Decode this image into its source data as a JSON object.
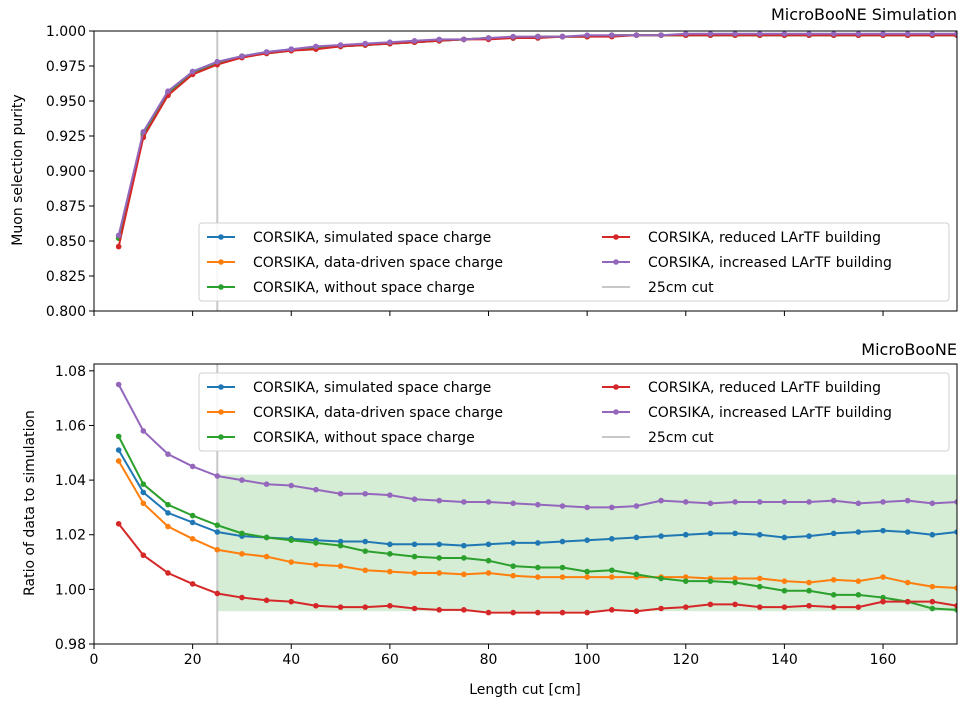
{
  "chart_data": [
    {
      "type": "line",
      "title": "MicroBooNE Simulation",
      "xlabel": "",
      "ylabel": "Muon selection purity",
      "xlim": [
        0,
        175
      ],
      "ylim": [
        0.8,
        1.0
      ],
      "xticks": [
        0,
        20,
        40,
        60,
        80,
        100,
        120,
        140,
        160
      ],
      "yticks": [
        0.8,
        0.825,
        0.85,
        0.875,
        0.9,
        0.925,
        0.95,
        0.975,
        1.0
      ],
      "ytick_labels": [
        "0.800",
        "0.825",
        "0.850",
        "0.875",
        "0.900",
        "0.925",
        "0.950",
        "0.975",
        "1.000"
      ],
      "cut_line_x": 25,
      "legend": {
        "placement": "lower right",
        "entries": [
          "CORSIKA, simulated space charge",
          "CORSIKA, data-driven space charge",
          "CORSIKA, without space charge",
          "CORSIKA, reduced LArTF building",
          "CORSIKA, increased LArTF building",
          "25cm cut"
        ]
      },
      "x": [
        5,
        10,
        15,
        20,
        25,
        30,
        35,
        40,
        45,
        50,
        55,
        60,
        65,
        70,
        75,
        80,
        85,
        90,
        95,
        100,
        105,
        110,
        115,
        120,
        125,
        130,
        135,
        140,
        145,
        150,
        155,
        160,
        165,
        170,
        175
      ],
      "series": [
        {
          "name": "CORSIKA, simulated space charge",
          "color": "#1f77b4",
          "values": [
            0.853,
            0.927,
            0.956,
            0.971,
            0.978,
            0.982,
            0.985,
            0.987,
            0.988,
            0.989,
            0.99,
            0.991,
            0.992,
            0.993,
            0.994,
            0.995,
            0.995,
            0.996,
            0.996,
            0.996,
            0.997,
            0.997,
            0.997,
            0.997,
            0.997,
            0.997,
            0.997,
            0.997,
            0.997,
            0.997,
            0.997,
            0.997,
            0.997,
            0.997,
            0.997
          ]
        },
        {
          "name": "CORSIKA, data-driven space charge",
          "color": "#ff7f0e",
          "values": [
            0.852,
            0.926,
            0.955,
            0.97,
            0.977,
            0.982,
            0.984,
            0.986,
            0.988,
            0.989,
            0.99,
            0.991,
            0.992,
            0.993,
            0.994,
            0.995,
            0.995,
            0.996,
            0.996,
            0.996,
            0.997,
            0.997,
            0.997,
            0.997,
            0.997,
            0.997,
            0.997,
            0.997,
            0.997,
            0.997,
            0.997,
            0.997,
            0.997,
            0.997,
            0.997
          ]
        },
        {
          "name": "CORSIKA, without space charge",
          "color": "#2ca02c",
          "values": [
            0.852,
            0.926,
            0.955,
            0.97,
            0.977,
            0.982,
            0.984,
            0.986,
            0.988,
            0.989,
            0.99,
            0.991,
            0.992,
            0.993,
            0.994,
            0.995,
            0.995,
            0.996,
            0.996,
            0.996,
            0.997,
            0.997,
            0.997,
            0.997,
            0.997,
            0.997,
            0.997,
            0.997,
            0.997,
            0.997,
            0.997,
            0.997,
            0.997,
            0.997,
            0.997
          ]
        },
        {
          "name": "CORSIKA, reduced LArTF building",
          "color": "#d62728",
          "values": [
            0.846,
            0.924,
            0.954,
            0.969,
            0.976,
            0.981,
            0.984,
            0.986,
            0.987,
            0.989,
            0.99,
            0.991,
            0.992,
            0.993,
            0.994,
            0.994,
            0.995,
            0.995,
            0.996,
            0.996,
            0.996,
            0.997,
            0.997,
            0.997,
            0.997,
            0.997,
            0.997,
            0.997,
            0.997,
            0.997,
            0.997,
            0.997,
            0.997,
            0.997,
            0.997
          ]
        },
        {
          "name": "CORSIKA, increased LArTF building",
          "color": "#9467bd",
          "values": [
            0.854,
            0.928,
            0.957,
            0.971,
            0.978,
            0.982,
            0.985,
            0.987,
            0.989,
            0.99,
            0.991,
            0.992,
            0.993,
            0.994,
            0.994,
            0.995,
            0.996,
            0.996,
            0.996,
            0.997,
            0.997,
            0.997,
            0.997,
            0.998,
            0.998,
            0.998,
            0.998,
            0.998,
            0.998,
            0.998,
            0.998,
            0.998,
            0.998,
            0.998,
            0.998
          ]
        }
      ]
    },
    {
      "type": "line",
      "title": "MicroBooNE",
      "xlabel": "Length cut [cm]",
      "ylabel": "Ratio of data to simulation",
      "xlim": [
        0,
        175
      ],
      "ylim": [
        0.98,
        1.0825
      ],
      "xticks": [
        0,
        20,
        40,
        60,
        80,
        100,
        120,
        140,
        160
      ],
      "yticks": [
        0.98,
        1.0,
        1.02,
        1.04,
        1.06,
        1.08
      ],
      "ytick_labels": [
        "0.98",
        "1.00",
        "1.02",
        "1.04",
        "1.06",
        "1.08"
      ],
      "cut_line_x": 25,
      "band": {
        "x": [
          25,
          175
        ],
        "y": [
          0.992,
          1.042
        ],
        "color": "#2ca02c"
      },
      "legend": {
        "placement": "top right",
        "entries": [
          "CORSIKA, simulated space charge",
          "CORSIKA, data-driven space charge",
          "CORSIKA, without space charge",
          "CORSIKA, reduced LArTF building",
          "CORSIKA, increased LArTF building",
          "25cm cut"
        ]
      },
      "x": [
        5,
        10,
        15,
        20,
        25,
        30,
        35,
        40,
        45,
        50,
        55,
        60,
        65,
        70,
        75,
        80,
        85,
        90,
        95,
        100,
        105,
        110,
        115,
        120,
        125,
        130,
        135,
        140,
        145,
        150,
        155,
        160,
        165,
        170,
        175
      ],
      "series": [
        {
          "name": "CORSIKA, simulated space charge",
          "color": "#1f77b4",
          "values": [
            1.051,
            1.0355,
            1.028,
            1.0245,
            1.021,
            1.0195,
            1.019,
            1.0185,
            1.018,
            1.0175,
            1.0175,
            1.0165,
            1.0165,
            1.0165,
            1.016,
            1.0165,
            1.017,
            1.017,
            1.0175,
            1.018,
            1.0185,
            1.019,
            1.0195,
            1.02,
            1.0205,
            1.0205,
            1.02,
            1.019,
            1.0195,
            1.0205,
            1.021,
            1.0215,
            1.021,
            1.02,
            1.021
          ]
        },
        {
          "name": "CORSIKA, data-driven space charge",
          "color": "#ff7f0e",
          "values": [
            1.047,
            1.0315,
            1.023,
            1.0185,
            1.0145,
            1.013,
            1.012,
            1.01,
            1.009,
            1.0085,
            1.007,
            1.0065,
            1.006,
            1.006,
            1.0055,
            1.006,
            1.005,
            1.0045,
            1.0045,
            1.0045,
            1.0045,
            1.0045,
            1.0045,
            1.0045,
            1.004,
            1.004,
            1.004,
            1.003,
            1.0025,
            1.0035,
            1.003,
            1.0045,
            1.0025,
            1.001,
            1.0005
          ]
        },
        {
          "name": "CORSIKA, without space charge",
          "color": "#2ca02c",
          "values": [
            1.056,
            1.0385,
            1.031,
            1.027,
            1.0235,
            1.0205,
            1.019,
            1.018,
            1.017,
            1.016,
            1.014,
            1.013,
            1.012,
            1.0115,
            1.0115,
            1.0105,
            1.0085,
            1.008,
            1.008,
            1.0065,
            1.007,
            1.0055,
            1.004,
            1.003,
            1.003,
            1.0025,
            1.001,
            0.9995,
            0.9995,
            0.998,
            0.998,
            0.997,
            0.9955,
            0.993,
            0.9925
          ]
        },
        {
          "name": "CORSIKA, reduced LArTF building",
          "color": "#d62728",
          "values": [
            1.024,
            1.0125,
            1.006,
            1.002,
            0.9985,
            0.997,
            0.996,
            0.9955,
            0.994,
            0.9935,
            0.9935,
            0.994,
            0.993,
            0.9925,
            0.9925,
            0.9915,
            0.9915,
            0.9915,
            0.9915,
            0.9915,
            0.9925,
            0.992,
            0.993,
            0.9935,
            0.9945,
            0.9945,
            0.9935,
            0.9935,
            0.994,
            0.9935,
            0.9935,
            0.9955,
            0.9955,
            0.9955,
            0.994
          ]
        },
        {
          "name": "CORSIKA, increased LArTF building",
          "color": "#9467bd",
          "values": [
            1.075,
            1.058,
            1.0495,
            1.045,
            1.0415,
            1.04,
            1.0385,
            1.038,
            1.0365,
            1.035,
            1.035,
            1.0345,
            1.033,
            1.0325,
            1.032,
            1.032,
            1.0315,
            1.031,
            1.0305,
            1.03,
            1.03,
            1.0305,
            1.0325,
            1.032,
            1.0315,
            1.032,
            1.032,
            1.032,
            1.032,
            1.0325,
            1.0315,
            1.032,
            1.0325,
            1.0315,
            1.032
          ]
        }
      ]
    }
  ]
}
